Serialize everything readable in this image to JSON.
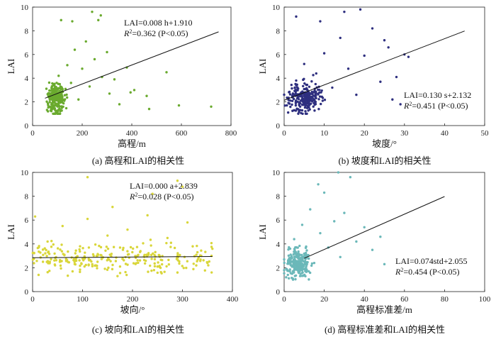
{
  "figure": {
    "captions": [
      "(a) 高程和LAI的相关性",
      "(b) 坡度和LAI的相关性",
      "(c) 坡向和LAI的相关性",
      "(d) 高程标准差和LAI的相关性"
    ]
  },
  "chart_data": [
    {
      "type": "scatter",
      "title": "",
      "xlabel": "高程/m",
      "ylabel": "LAI",
      "xlim": [
        0,
        800
      ],
      "ylim": [
        0,
        10
      ],
      "xticks": [
        0,
        200,
        400,
        600,
        800
      ],
      "yticks": [
        0,
        2,
        4,
        6,
        8,
        10
      ],
      "color": "#6aaa2e",
      "annotation": {
        "eq": "LAI=0.008 h+1.910",
        "r2": "=0.362 (P<0.05)"
      },
      "fit": {
        "slope": 0.008,
        "intercept": 1.91,
        "x_range": [
          50,
          750
        ]
      },
      "points_summary": "approx. 500 sample points, densest at h 50-150 m with LAI 1-3",
      "points": [
        [
          62,
          1.2
        ],
        [
          70,
          2.5
        ],
        [
          85,
          3.1
        ],
        [
          95,
          1.8
        ],
        [
          105,
          4.2
        ],
        [
          120,
          2.9
        ],
        [
          140,
          5.1
        ],
        [
          155,
          3.6
        ],
        [
          170,
          6.4
        ],
        [
          185,
          2.2
        ],
        [
          200,
          4.8
        ],
        [
          215,
          7.1
        ],
        [
          230,
          3.3
        ],
        [
          250,
          5.6
        ],
        [
          265,
          8.9
        ],
        [
          280,
          4.1
        ],
        [
          300,
          6.2
        ],
        [
          310,
          2.7
        ],
        [
          330,
          3.9
        ],
        [
          350,
          1.8
        ],
        [
          380,
          4.9
        ],
        [
          395,
          2.8
        ],
        [
          410,
          3.0
        ],
        [
          460,
          2.5
        ],
        [
          470,
          1.4
        ],
        [
          540,
          4.5
        ],
        [
          590,
          1.7
        ],
        [
          720,
          1.6
        ],
        [
          160,
          8.8
        ],
        [
          240,
          9.6
        ],
        [
          275,
          9.3
        ],
        [
          115,
          8.9
        ]
      ]
    },
    {
      "type": "scatter",
      "title": "",
      "xlabel": "坡度/°",
      "ylabel": "LAI",
      "xlim": [
        0,
        50
      ],
      "ylim": [
        0,
        10
      ],
      "xticks": [
        0,
        10,
        20,
        30,
        40,
        50
      ],
      "yticks": [
        0,
        2,
        4,
        6,
        8,
        10
      ],
      "color": "#2e2f7f",
      "annotation": {
        "eq": "LAI=0.130 s+2.132",
        "r2": "=0.451 (P<0.05)"
      },
      "fit": {
        "slope": 0.13,
        "intercept": 2.132,
        "x_range": [
          0,
          45
        ]
      },
      "points_summary": "approx. 500 sample points, densest at slope 0-8° with LAI 1-3",
      "points": [
        [
          1,
          1.1
        ],
        [
          2,
          2.4
        ],
        [
          3,
          3.8
        ],
        [
          4,
          1.6
        ],
        [
          5,
          5.2
        ],
        [
          6,
          2.9
        ],
        [
          8,
          4.4
        ],
        [
          10,
          6.1
        ],
        [
          12,
          3.2
        ],
        [
          14,
          7.4
        ],
        [
          16,
          4.8
        ],
        [
          18,
          2.6
        ],
        [
          20,
          5.9
        ],
        [
          22,
          8.2
        ],
        [
          24,
          3.7
        ],
        [
          26,
          6.6
        ],
        [
          28,
          4.1
        ],
        [
          30,
          6.0
        ],
        [
          31,
          5.8
        ],
        [
          15,
          9.6
        ],
        [
          19,
          9.8
        ],
        [
          25,
          7.2
        ],
        [
          27,
          2.2
        ],
        [
          29,
          1.8
        ],
        [
          9,
          8.8
        ],
        [
          3,
          9.2
        ]
      ]
    },
    {
      "type": "scatter",
      "title": "",
      "xlabel": "坡向/°",
      "ylabel": "LAI",
      "xlim": [
        0,
        400
      ],
      "ylim": [
        0,
        10
      ],
      "xticks": [
        0,
        100,
        200,
        300,
        400
      ],
      "yticks": [
        0,
        2,
        4,
        6,
        8,
        10
      ],
      "color": "#d9d63a",
      "annotation": {
        "eq": "LAI=0.000 a+2.839",
        "r2": "=0.028 (P<0.05)"
      },
      "fit": {
        "slope": 0.0003,
        "intercept": 2.839,
        "x_range": [
          0,
          360
        ]
      },
      "points_summary": "approx. 500 sample points spread uniformly over aspect 0-360° with LAI 1-6",
      "points": [
        [
          5,
          6.3
        ],
        [
          12,
          1.4
        ],
        [
          30,
          4.2
        ],
        [
          45,
          2.2
        ],
        [
          60,
          5.5
        ],
        [
          80,
          1.7
        ],
        [
          95,
          3.8
        ],
        [
          110,
          6.1
        ],
        [
          130,
          2.5
        ],
        [
          150,
          4.7
        ],
        [
          170,
          1.3
        ],
        [
          190,
          5.2
        ],
        [
          210,
          3.0
        ],
        [
          230,
          6.4
        ],
        [
          250,
          2.1
        ],
        [
          270,
          4.5
        ],
        [
          290,
          1.6
        ],
        [
          310,
          5.8
        ],
        [
          330,
          3.3
        ],
        [
          350,
          2.4
        ],
        [
          160,
          7.1
        ],
        [
          110,
          9.6
        ],
        [
          240,
          8.2
        ],
        [
          290,
          9.3
        ],
        [
          300,
          8.8
        ]
      ]
    },
    {
      "type": "scatter",
      "title": "",
      "xlabel": "高程标准差/m",
      "ylabel": "LAI",
      "xlim": [
        0,
        100
      ],
      "ylim": [
        0,
        10
      ],
      "xticks": [
        0,
        20,
        40,
        60,
        80,
        100
      ],
      "yticks": [
        0,
        2,
        4,
        6,
        8,
        10
      ],
      "color": "#6bb8b9",
      "annotation": {
        "eq": "LAI=0.074std+2.055",
        "r2": "=0.454 (P<0.05)"
      },
      "fit": {
        "slope": 0.074,
        "intercept": 2.055,
        "x_range": [
          10,
          80
        ]
      },
      "points_summary": "approx. 500 sample points, densest at std 0-15 m with LAI 1-3",
      "points": [
        [
          1,
          1.2
        ],
        [
          2,
          2.5
        ],
        [
          3,
          3.6
        ],
        [
          4,
          1.5
        ],
        [
          5,
          4.4
        ],
        [
          7,
          2.8
        ],
        [
          9,
          5.6
        ],
        [
          11,
          3.1
        ],
        [
          13,
          6.9
        ],
        [
          15,
          2.4
        ],
        [
          18,
          4.9
        ],
        [
          20,
          8.3
        ],
        [
          22,
          3.7
        ],
        [
          25,
          5.9
        ],
        [
          28,
          2.9
        ],
        [
          30,
          6.6
        ],
        [
          33,
          9.6
        ],
        [
          36,
          4.2
        ],
        [
          40,
          5.4
        ],
        [
          44,
          3.5
        ],
        [
          48,
          4.6
        ],
        [
          50,
          2.3
        ],
        [
          17,
          9.0
        ],
        [
          27,
          10.0
        ]
      ]
    }
  ]
}
